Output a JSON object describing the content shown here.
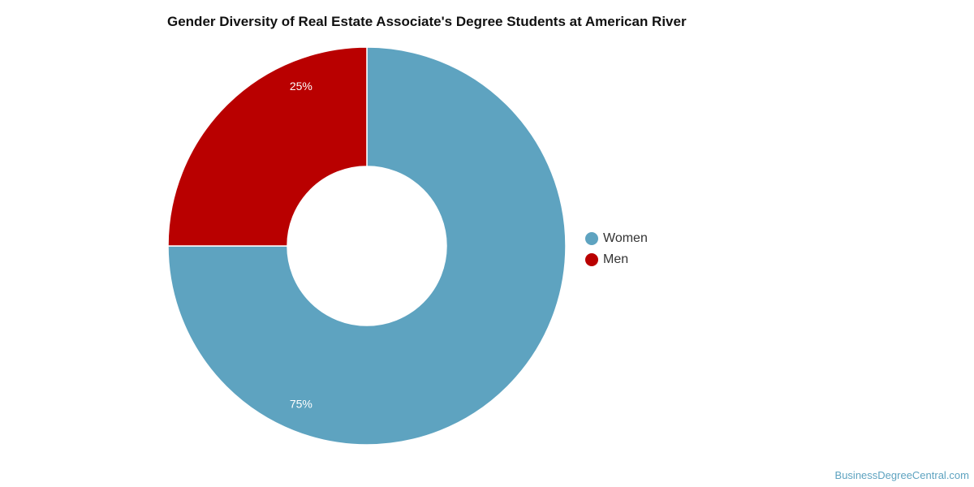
{
  "chart_data": {
    "type": "pie",
    "title": "Gender Diversity of Real Estate Associate's Degree Students at American River",
    "categories": [
      "Women",
      "Men"
    ],
    "values": [
      75,
      25
    ],
    "labels": [
      "75%",
      "25%"
    ],
    "colors": [
      "#5ea3c0",
      "#b90000"
    ],
    "legend_position": "right",
    "donut": true
  },
  "watermark": "BusinessDegreeCentral.com"
}
